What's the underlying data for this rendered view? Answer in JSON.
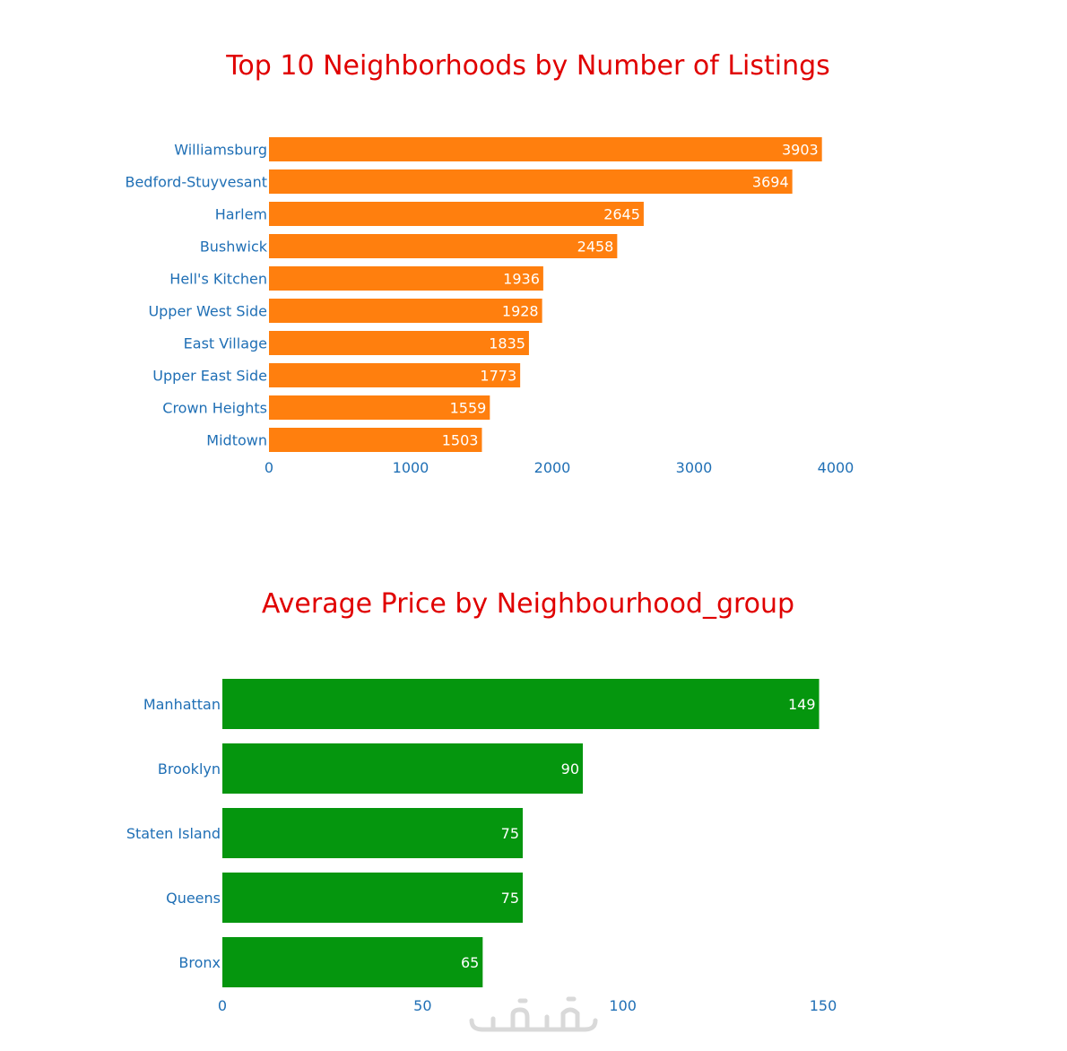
{
  "colors": {
    "title": "#e00000",
    "axis_text": "#1f6fb5",
    "bar_label": "#ffffff",
    "watermark": "#d9d9d9"
  },
  "chart_data": [
    {
      "type": "bar",
      "orientation": "horizontal",
      "title": "Top 10 Neighborhoods by Number of Listings",
      "xlabel": "",
      "ylabel": "",
      "bar_color": "#ff7f0e",
      "categories": [
        "Williamsburg",
        "Bedford-Stuyvesant",
        "Harlem",
        "Bushwick",
        "Hell's Kitchen",
        "Upper West Side",
        "East Village",
        "Upper East Side",
        "Crown Heights",
        "Midtown"
      ],
      "values": [
        3903,
        3694,
        2645,
        2458,
        1936,
        1928,
        1835,
        1773,
        1559,
        1503
      ],
      "xlim": [
        0,
        4000
      ],
      "xticks": [
        0,
        1000,
        2000,
        3000,
        4000
      ],
      "grid": false,
      "data_labels": "inside-end"
    },
    {
      "type": "bar",
      "orientation": "horizontal",
      "title": "Average Price by Neighbourhood_group",
      "xlabel": "",
      "ylabel": "",
      "bar_color": "#05960e",
      "categories": [
        "Manhattan",
        "Brooklyn",
        "Staten Island",
        "Queens",
        "Bronx"
      ],
      "values": [
        149,
        90,
        75,
        75,
        65
      ],
      "xlim": [
        0,
        150
      ],
      "xticks": [
        0,
        50,
        100,
        150
      ],
      "grid": false,
      "data_labels": "inside-end"
    }
  ]
}
